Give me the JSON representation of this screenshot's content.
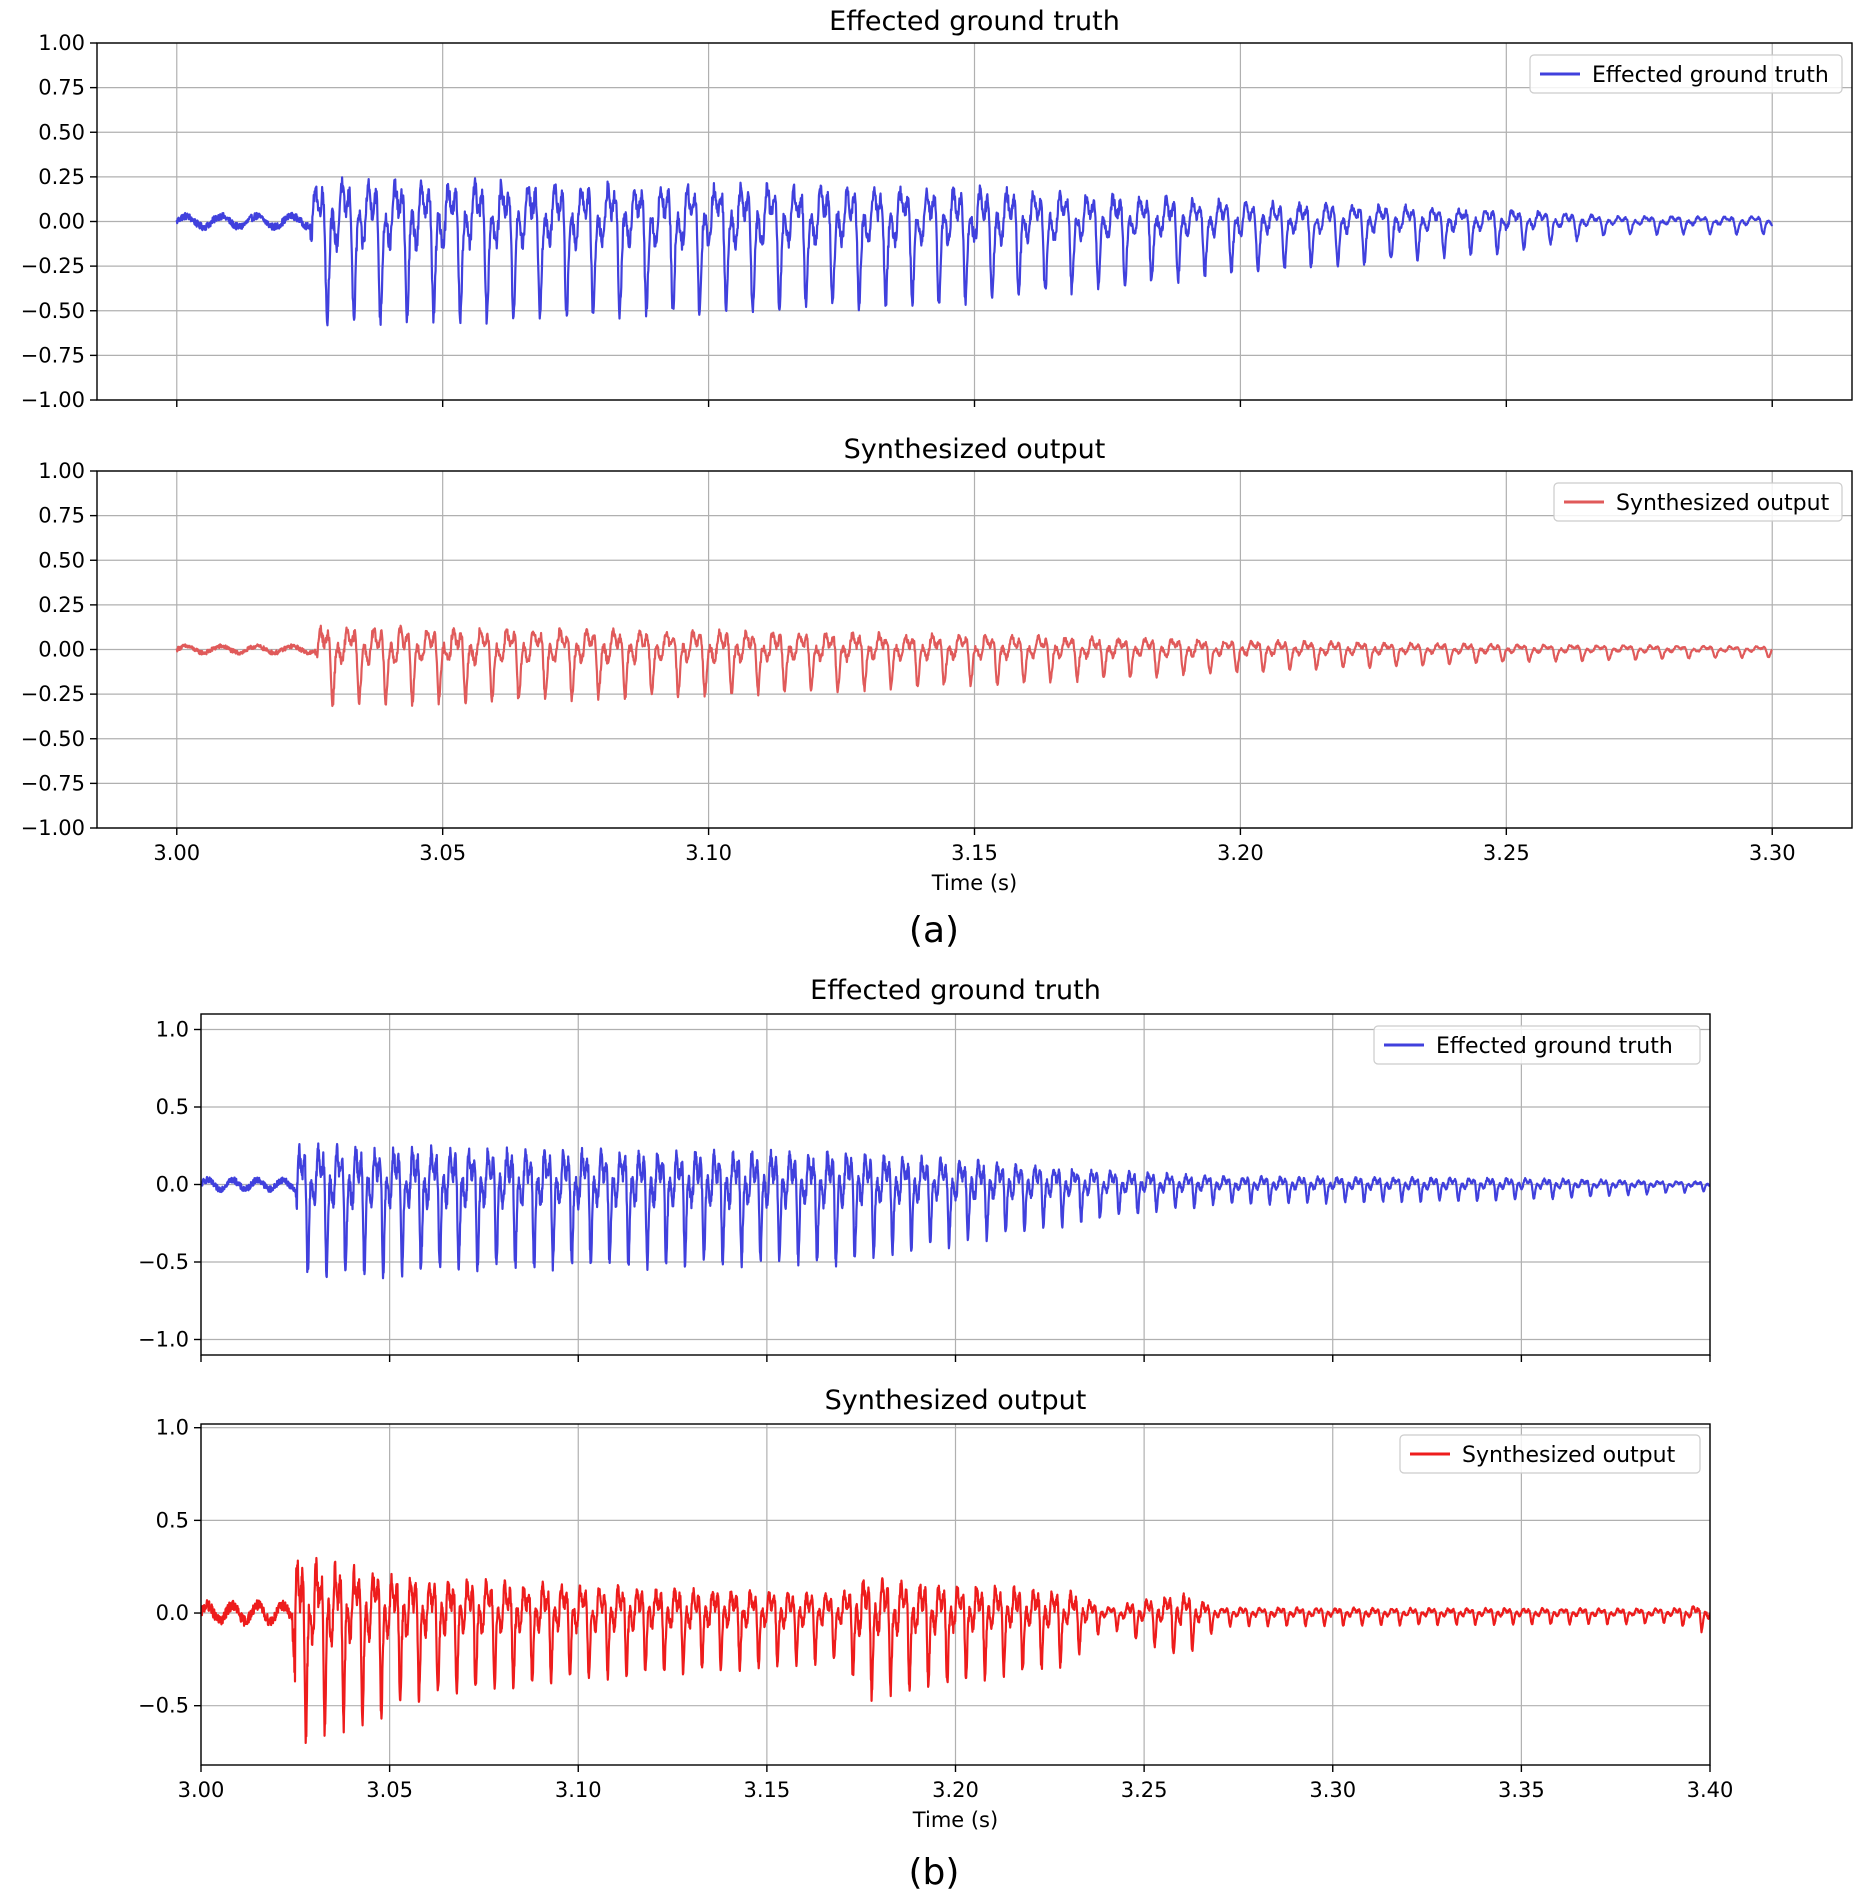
{
  "chart_data": [
    {
      "type": "line",
      "title": "Effected ground truth",
      "xlabel": "",
      "ylabel": "",
      "xlim": [
        2.985,
        3.315
      ],
      "ylim": [
        -1.0,
        1.0
      ],
      "xticks": [
        "3.00",
        "3.05",
        "3.10",
        "3.15",
        "3.20",
        "3.25",
        "3.30"
      ],
      "xtick_labels_visible": false,
      "yticks": [
        "1.00",
        "0.75",
        "0.50",
        "0.25",
        "0.00",
        "−0.25",
        "−0.50",
        "−0.75",
        "−1.00"
      ],
      "grid": true,
      "legend_position": "top-right",
      "series": [
        {
          "name": "Effected ground truth",
          "color": "#4040dd",
          "x_start": 3.0,
          "x_end": 3.3,
          "onset": 3.0255,
          "f0_hz": 200,
          "amplitude_envelope": [
            [
              3.0,
              0.05
            ],
            [
              3.025,
              0.05
            ],
            [
              3.026,
              0.4
            ],
            [
              3.1,
              0.36
            ],
            [
              3.15,
              0.32
            ],
            [
              3.2,
              0.2
            ],
            [
              3.25,
              0.12
            ],
            [
              3.27,
              0.05
            ],
            [
              3.3,
              0.05
            ]
          ]
        }
      ]
    },
    {
      "type": "line",
      "title": "Synthesized output",
      "xlabel": "Time (s)",
      "ylabel": "",
      "xlim": [
        2.985,
        3.315
      ],
      "ylim": [
        -1.0,
        1.0
      ],
      "xticks": [
        "3.00",
        "3.05",
        "3.10",
        "3.15",
        "3.20",
        "3.25",
        "3.30"
      ],
      "yticks": [
        "1.00",
        "0.75",
        "0.50",
        "0.25",
        "0.00",
        "−0.25",
        "−0.50",
        "−0.75",
        "−1.00"
      ],
      "grid": true,
      "legend_position": "top-right",
      "series": [
        {
          "name": "Synthesized output",
          "color": "#e05a5a",
          "x_start": 3.0,
          "x_end": 3.3,
          "onset": 3.0265,
          "f0_hz": 200,
          "amplitude_envelope": [
            [
              3.0,
              0.03
            ],
            [
              3.026,
              0.03
            ],
            [
              3.027,
              0.22
            ],
            [
              3.1,
              0.18
            ],
            [
              3.15,
              0.14
            ],
            [
              3.2,
              0.09
            ],
            [
              3.25,
              0.05
            ],
            [
              3.3,
              0.03
            ]
          ]
        }
      ]
    },
    {
      "type": "line",
      "title": "Effected ground truth",
      "xlabel": "",
      "ylabel": "",
      "xlim": [
        3.0,
        3.4
      ],
      "ylim": [
        -1.1,
        1.1
      ],
      "xticks": [
        "3.00",
        "3.05",
        "3.10",
        "3.15",
        "3.20",
        "3.25",
        "3.30",
        "3.35",
        "3.40"
      ],
      "xtick_labels_visible": false,
      "yticks": [
        "1.0",
        "0.5",
        "0.0",
        "−0.5",
        "−1.0"
      ],
      "grid": true,
      "legend_position": "top-right",
      "series": [
        {
          "name": "Effected ground truth",
          "color": "#4040dd",
          "x_start": 3.0,
          "x_end": 3.4,
          "onset": 3.0255,
          "f0_hz": 200,
          "amplitude_envelope": [
            [
              3.0,
              0.05
            ],
            [
              3.025,
              0.05
            ],
            [
              3.026,
              0.42
            ],
            [
              3.1,
              0.37
            ],
            [
              3.17,
              0.35
            ],
            [
              3.2,
              0.27
            ],
            [
              3.24,
              0.15
            ],
            [
              3.27,
              0.09
            ],
            [
              3.35,
              0.07
            ],
            [
              3.4,
              0.03
            ]
          ]
        }
      ]
    },
    {
      "type": "line",
      "title": "Synthesized output",
      "xlabel": "Time (s)",
      "ylabel": "",
      "xlim": [
        3.0,
        3.4
      ],
      "ylim": [
        -0.82,
        1.02
      ],
      "xticks": [
        "3.00",
        "3.05",
        "3.10",
        "3.15",
        "3.20",
        "3.25",
        "3.30",
        "3.35",
        "3.40"
      ],
      "yticks": [
        "1.0",
        "0.5",
        "0.0",
        "−0.5"
      ],
      "grid": true,
      "legend_position": "top-right",
      "series": [
        {
          "name": "Synthesized output",
          "color": "#ee1c1c",
          "x_start": 3.0,
          "x_end": 3.4,
          "onset": 3.025,
          "f0_hz": 200,
          "amplitude_envelope": [
            [
              3.0,
              0.07
            ],
            [
              3.024,
              0.07
            ],
            [
              3.025,
              0.5
            ],
            [
              3.06,
              0.32
            ],
            [
              3.1,
              0.25
            ],
            [
              3.17,
              0.18
            ],
            [
              3.176,
              0.32
            ],
            [
              3.2,
              0.26
            ],
            [
              3.23,
              0.2
            ],
            [
              3.24,
              0.05
            ],
            [
              3.26,
              0.18
            ],
            [
              3.27,
              0.05
            ],
            [
              3.39,
              0.04
            ],
            [
              3.4,
              0.08
            ]
          ]
        }
      ]
    }
  ],
  "captions": [
    "(a)",
    "(b)"
  ]
}
